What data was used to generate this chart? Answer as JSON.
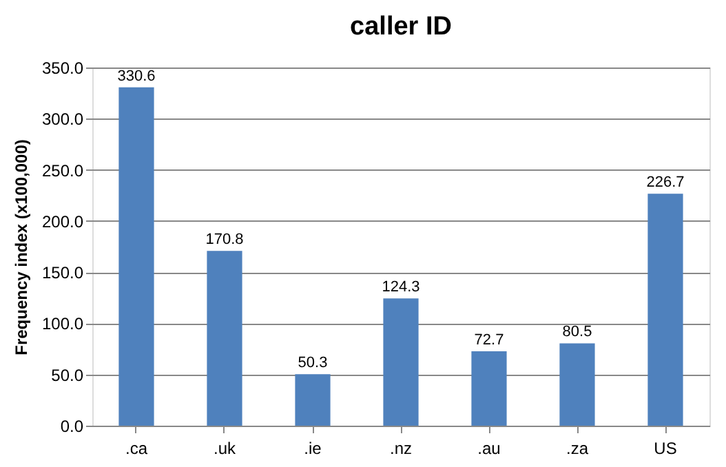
{
  "chart_data": {
    "type": "bar",
    "title": "caller ID",
    "ylabel": "Frequency index (x100,000)",
    "categories": [
      ".ca",
      ".uk",
      ".ie",
      ".nz",
      ".au",
      ".za",
      "US"
    ],
    "values": [
      330.6,
      170.8,
      50.3,
      124.3,
      72.7,
      80.5,
      226.7
    ],
    "color": "#4f81bd",
    "ylim": [
      0,
      350
    ],
    "yticks": [
      {
        "value": 0,
        "label": "0.0"
      },
      {
        "value": 50,
        "label": "50.0"
      },
      {
        "value": 100,
        "label": "100.0"
      },
      {
        "value": 150,
        "label": "150.0"
      },
      {
        "value": 200,
        "label": "200.0"
      },
      {
        "value": 250,
        "label": "250.0"
      },
      {
        "value": 300,
        "label": "300.0"
      },
      {
        "value": 350,
        "label": "350.0"
      }
    ],
    "grid": "y",
    "data_labels": true
  }
}
